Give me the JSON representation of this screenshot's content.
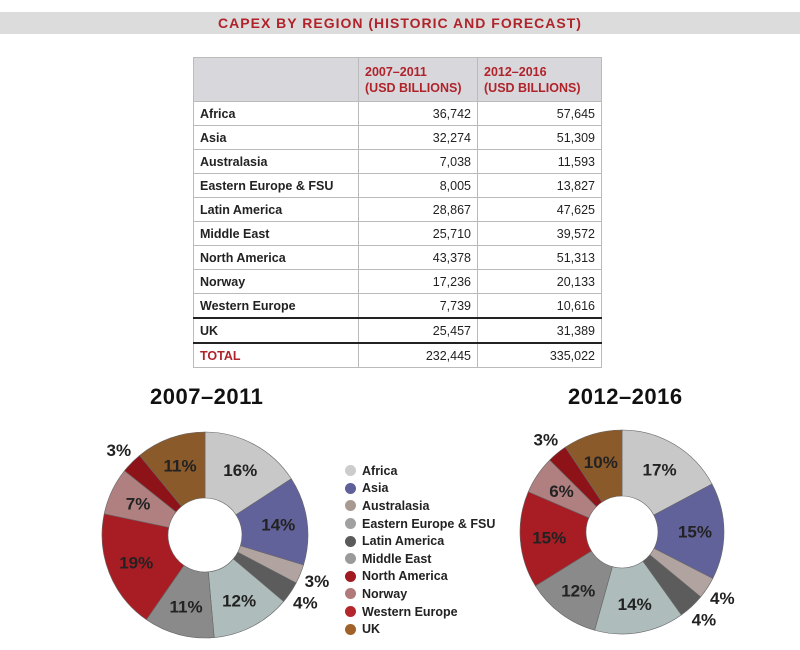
{
  "title": "CAPEX BY REGION (HISTORIC AND FORECAST)",
  "table": {
    "headers": [
      "",
      "2007–2011 (USD BILLIONS)",
      "2012–2016 (USD BILLIONS)"
    ],
    "header_lines": [
      [
        "2007–2011",
        "(USD BILLIONS)"
      ],
      [
        "2012–2016",
        "(USD BILLIONS)"
      ]
    ],
    "rows": [
      [
        "Africa",
        "36,742",
        "57,645"
      ],
      [
        "Asia",
        "32,274",
        "51,309"
      ],
      [
        "Australasia",
        "7,038",
        "11,593"
      ],
      [
        "Eastern Europe & FSU",
        "8,005",
        "13,827"
      ],
      [
        "Latin America",
        "28,867",
        "47,625"
      ],
      [
        "Middle East",
        "25,710",
        "39,572"
      ],
      [
        "North America",
        "43,378",
        "51,313"
      ],
      [
        "Norway",
        "17,236",
        "20,133"
      ],
      [
        "Western Europe",
        "7,739",
        "10,616"
      ],
      [
        "UK",
        "25,457",
        "31,389"
      ],
      [
        "TOTAL",
        "232,445",
        "335,022"
      ]
    ]
  },
  "chart_data": [
    {
      "type": "pie",
      "title": "2007–2011",
      "categories": [
        "Africa",
        "Asia",
        "Australasia",
        "Eastern Europe & FSU",
        "Latin America",
        "Middle East",
        "North America",
        "Norway",
        "Western Europe",
        "UK"
      ],
      "values": [
        36742,
        32274,
        7038,
        8005,
        28867,
        25710,
        43378,
        17236,
        7739,
        25457
      ],
      "labels": [
        "16%",
        "14%",
        "3%",
        "4%",
        "12%",
        "11%",
        "19%",
        "7%",
        "3%",
        "11%"
      ]
    },
    {
      "type": "pie",
      "title": "2012–2016",
      "categories": [
        "Africa",
        "Asia",
        "Australasia",
        "Eastern Europe & FSU",
        "Latin America",
        "Middle East",
        "North America",
        "Norway",
        "Western Europe",
        "UK"
      ],
      "values": [
        57645,
        51309,
        11593,
        13827,
        47625,
        39572,
        51313,
        20133,
        10616,
        31389
      ],
      "labels": [
        "17%",
        "15%",
        "4%",
        "4%",
        "14%",
        "12%",
        "15%",
        "6%",
        "3%",
        "10%"
      ]
    }
  ],
  "legend": [
    {
      "label": "Africa",
      "color": "#cccccc"
    },
    {
      "label": "Asia",
      "color": "#5f5f9a"
    },
    {
      "label": "Australasia",
      "color": "#a89a90"
    },
    {
      "label": "Eastern Europe & FSU",
      "color": "#a0a0a0"
    },
    {
      "label": "Latin America",
      "color": "#5a5a5a"
    },
    {
      "label": "Middle East",
      "color": "#9a9a9a"
    },
    {
      "label": "North America",
      "color": "#a01a1f"
    },
    {
      "label": "Norway",
      "color": "#b07a7a"
    },
    {
      "label": "Western Europe",
      "color": "#b3262b"
    },
    {
      "label": "UK",
      "color": "#a0622a"
    }
  ],
  "slice_colors": [
    "#c8c8c8",
    "#62629b",
    "#b0a3a0",
    "#5c5c5c",
    "#aebcbc",
    "#8a8a8a",
    "#a81d24",
    "#b08080",
    "#8e1318",
    "#8b5a2b"
  ]
}
